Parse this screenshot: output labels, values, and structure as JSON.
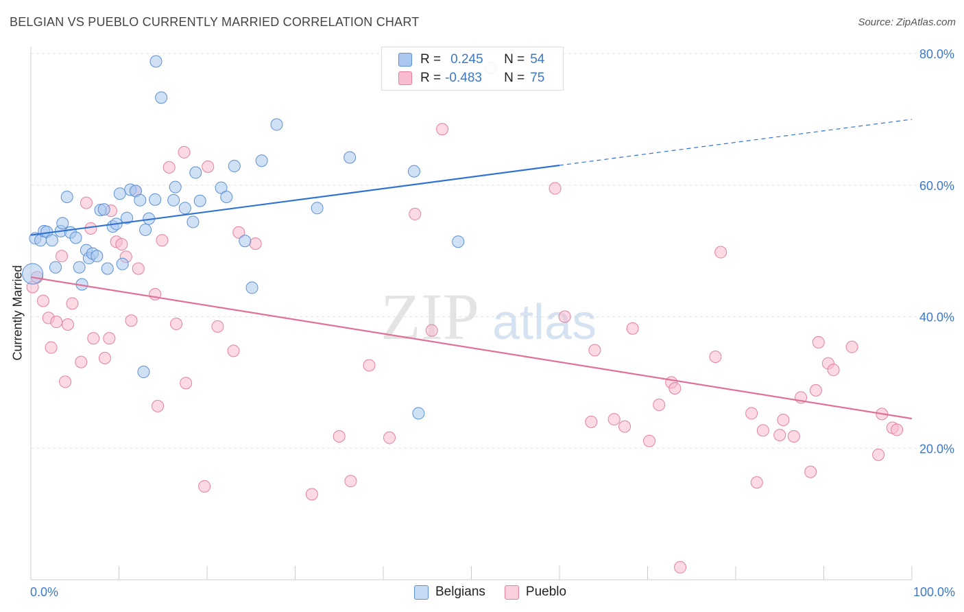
{
  "header": {
    "title": "BELGIAN VS PUEBLO CURRENTLY MARRIED CORRELATION CHART",
    "source": "Source: ZipAtlas.com"
  },
  "legend": {
    "row1": {
      "r_label": "R =",
      "r_value": "0.245",
      "n_label": "N =",
      "n_value": "54"
    },
    "row2": {
      "r_label": "R =",
      "r_value": "-0.483",
      "n_label": "N =",
      "n_value": "75"
    }
  },
  "bottom_legend": {
    "belgians": "Belgians",
    "pueblo": "Pueblo"
  },
  "colors": {
    "belgian_fill": "#aac8ee",
    "belgian_stroke": "#5b8fd6",
    "belgian_line": "#2f72d2",
    "pueblo_fill": "#f7bccd",
    "pueblo_stroke": "#e57fa0",
    "pueblo_line": "#e0709a",
    "tick_text": "#3b78c9",
    "grid": "#e3e3e3"
  },
  "chart_data": {
    "type": "scatter",
    "title": "BELGIAN VS PUEBLO CURRENTLY MARRIED CORRELATION CHART",
    "xlabel": "",
    "ylabel": "Currently Married",
    "xlim": [
      0,
      100
    ],
    "ylim": [
      0,
      80
    ],
    "x_tick_labels": [
      "0.0%",
      "100.0%"
    ],
    "y_ticks": [
      20,
      40,
      60,
      80
    ],
    "y_tick_labels": [
      "20.0%",
      "40.0%",
      "60.0%",
      "80.0%"
    ],
    "watermark": "ZIPatlas",
    "grid": true,
    "legend_position": "top-center",
    "series": [
      {
        "name": "Belgians",
        "r": 0.245,
        "n": 54,
        "trend": {
          "x0": 0,
          "y0": 52.4,
          "x1": 60,
          "y1": 63.0,
          "x_dash_end": 100,
          "y_dash_end": 70.0
        },
        "points": [
          [
            0.2,
            46.5
          ],
          [
            0.5,
            51.9
          ],
          [
            1.1,
            51.6
          ],
          [
            1.5,
            53.0
          ],
          [
            1.8,
            52.9
          ],
          [
            2.4,
            51.6
          ],
          [
            2.8,
            47.5
          ],
          [
            3.4,
            53.0
          ],
          [
            3.6,
            54.2
          ],
          [
            4.1,
            58.2
          ],
          [
            4.5,
            52.8
          ],
          [
            5.1,
            52.0
          ],
          [
            5.5,
            47.5
          ],
          [
            5.8,
            44.9
          ],
          [
            6.3,
            50.1
          ],
          [
            6.6,
            48.9
          ],
          [
            7.0,
            49.6
          ],
          [
            7.5,
            49.2
          ],
          [
            7.9,
            56.2
          ],
          [
            8.3,
            56.3
          ],
          [
            8.7,
            47.3
          ],
          [
            9.3,
            53.7
          ],
          [
            9.7,
            54.1
          ],
          [
            10.1,
            58.7
          ],
          [
            10.4,
            48.0
          ],
          [
            10.9,
            55.0
          ],
          [
            11.3,
            59.3
          ],
          [
            11.9,
            59.1
          ],
          [
            12.4,
            57.7
          ],
          [
            12.8,
            31.6
          ],
          [
            13.0,
            53.2
          ],
          [
            13.4,
            54.9
          ],
          [
            14.1,
            57.8
          ],
          [
            14.2,
            78.8
          ],
          [
            14.8,
            73.3
          ],
          [
            16.2,
            57.7
          ],
          [
            16.4,
            59.7
          ],
          [
            17.5,
            56.5
          ],
          [
            18.4,
            54.4
          ],
          [
            18.7,
            61.9
          ],
          [
            19.2,
            57.6
          ],
          [
            21.6,
            59.6
          ],
          [
            22.2,
            58.2
          ],
          [
            23.1,
            62.9
          ],
          [
            24.3,
            51.5
          ],
          [
            25.1,
            44.4
          ],
          [
            26.2,
            63.7
          ],
          [
            27.9,
            69.2
          ],
          [
            32.5,
            56.5
          ],
          [
            36.2,
            64.2
          ],
          [
            43.5,
            62.1
          ],
          [
            44.0,
            25.3
          ],
          [
            48.5,
            51.4
          ],
          [
            52.2,
            77.8
          ]
        ]
      },
      {
        "name": "Pueblo",
        "r": -0.483,
        "n": 75,
        "trend": {
          "x0": 0,
          "y0": 46.0,
          "x1": 100,
          "y1": 24.5
        },
        "points": [
          [
            0.2,
            44.5
          ],
          [
            0.7,
            46.0
          ],
          [
            1.4,
            42.4
          ],
          [
            2.0,
            39.8
          ],
          [
            2.3,
            35.3
          ],
          [
            2.9,
            39.2
          ],
          [
            3.5,
            49.2
          ],
          [
            3.9,
            30.1
          ],
          [
            4.2,
            38.8
          ],
          [
            4.7,
            42.0
          ],
          [
            5.7,
            33.1
          ],
          [
            6.3,
            57.3
          ],
          [
            6.8,
            53.4
          ],
          [
            7.1,
            36.7
          ],
          [
            8.4,
            33.7
          ],
          [
            8.9,
            36.7
          ],
          [
            9.1,
            56.1
          ],
          [
            9.7,
            51.4
          ],
          [
            10.3,
            51.0
          ],
          [
            10.8,
            49.1
          ],
          [
            11.4,
            39.4
          ],
          [
            11.9,
            59.1
          ],
          [
            12.2,
            47.3
          ],
          [
            14.1,
            43.4
          ],
          [
            14.4,
            26.4
          ],
          [
            14.9,
            51.6
          ],
          [
            15.7,
            62.7
          ],
          [
            16.5,
            38.9
          ],
          [
            17.4,
            65.0
          ],
          [
            17.6,
            29.9
          ],
          [
            19.7,
            14.2
          ],
          [
            20.1,
            62.8
          ],
          [
            21.2,
            38.5
          ],
          [
            23.0,
            34.8
          ],
          [
            23.6,
            52.8
          ],
          [
            25.5,
            51.1
          ],
          [
            31.9,
            13.0
          ],
          [
            35.0,
            21.8
          ],
          [
            36.3,
            15.0
          ],
          [
            38.4,
            32.6
          ],
          [
            40.7,
            21.6
          ],
          [
            43.6,
            55.6
          ],
          [
            45.5,
            37.9
          ],
          [
            46.7,
            68.5
          ],
          [
            59.5,
            59.5
          ],
          [
            60.6,
            40.0
          ],
          [
            63.6,
            24.0
          ],
          [
            64.0,
            34.9
          ],
          [
            66.2,
            24.4
          ],
          [
            67.4,
            23.3
          ],
          [
            68.3,
            38.2
          ],
          [
            70.2,
            21.1
          ],
          [
            71.3,
            26.6
          ],
          [
            72.7,
            30.0
          ],
          [
            73.1,
            29.1
          ],
          [
            73.7,
            1.9
          ],
          [
            77.7,
            33.9
          ],
          [
            78.3,
            49.8
          ],
          [
            81.8,
            25.3
          ],
          [
            82.4,
            14.8
          ],
          [
            83.1,
            22.7
          ],
          [
            85.0,
            22.0
          ],
          [
            85.4,
            24.3
          ],
          [
            86.6,
            21.8
          ],
          [
            87.4,
            27.7
          ],
          [
            88.5,
            16.4
          ],
          [
            89.1,
            28.8
          ],
          [
            89.4,
            36.1
          ],
          [
            90.5,
            32.9
          ],
          [
            91.1,
            31.9
          ],
          [
            93.2,
            35.4
          ],
          [
            96.2,
            19.0
          ],
          [
            96.6,
            25.2
          ],
          [
            97.8,
            23.1
          ],
          [
            98.3,
            22.8
          ]
        ]
      }
    ]
  }
}
